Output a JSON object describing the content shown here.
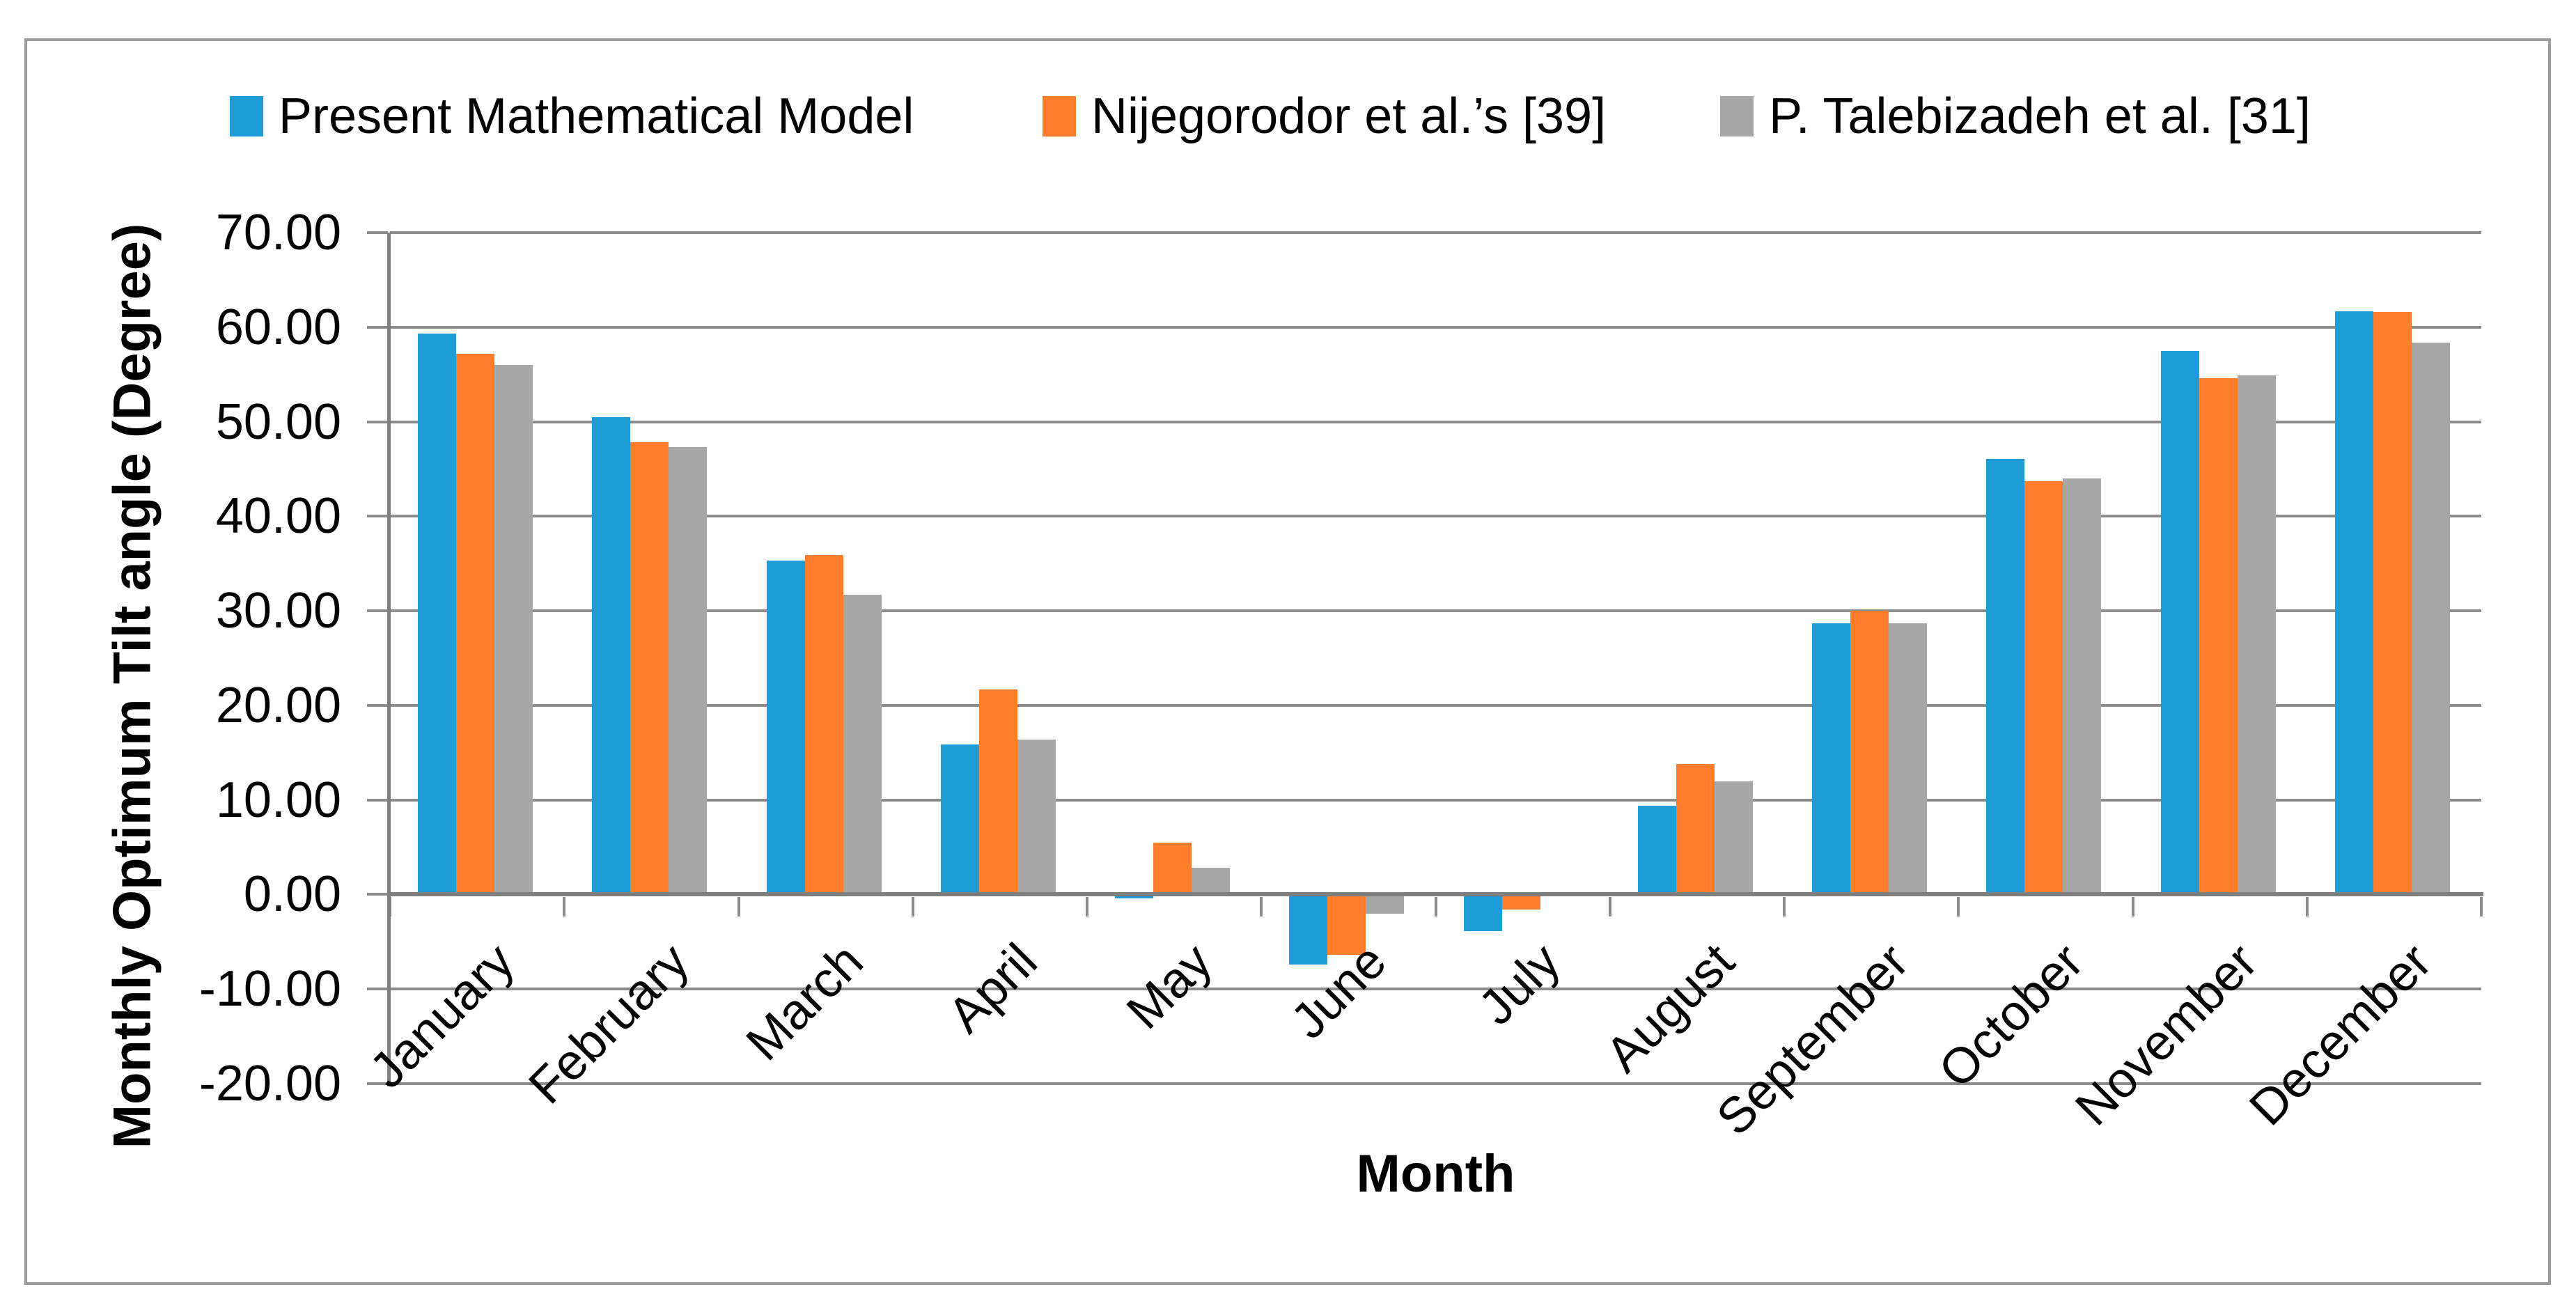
{
  "chart_data": {
    "type": "bar",
    "title": "",
    "categories": [
      "January",
      "February",
      "March",
      "April",
      "May",
      "June",
      "July",
      "August",
      "September",
      "October",
      "November",
      "December"
    ],
    "series": [
      {
        "name": "Present Mathematical Model",
        "color": "#1E9CD8",
        "values": [
          59.3,
          50.5,
          35.3,
          15.9,
          -0.4,
          -7.4,
          -3.9,
          9.4,
          28.7,
          46.1,
          57.5,
          61.7
        ]
      },
      {
        "name": "Nijegorodor et al.’s [39]",
        "color": "#FF7E2D",
        "values": [
          57.2,
          47.8,
          35.9,
          21.7,
          5.5,
          -6.4,
          -1.6,
          13.8,
          30.0,
          43.7,
          54.6,
          61.6
        ]
      },
      {
        "name": "P. Talebizadeh et al. [31]",
        "color": "#A6A6A6",
        "values": [
          56.0,
          47.3,
          31.7,
          16.4,
          2.8,
          -2.0,
          0.0,
          12.0,
          28.7,
          44.0,
          54.9,
          58.4
        ]
      }
    ],
    "xlabel": "Month",
    "ylabel": "Monthly Optimum Tilt angle (Degree)",
    "ylim": [
      -20,
      70
    ],
    "ytick_step": 10,
    "ytick_labels": [
      "70.00",
      "60.00",
      "50.00",
      "40.00",
      "30.00",
      "20.00",
      "10.00",
      "0.00",
      "-10.00",
      "-20.00"
    ],
    "grid": true,
    "legend_position": "top",
    "colors": {
      "gridline": "#8C8C8C",
      "axis": "#7F7F7F",
      "border": "#9B9B9B",
      "text": "#000000",
      "background": "#FFFFFF"
    }
  }
}
